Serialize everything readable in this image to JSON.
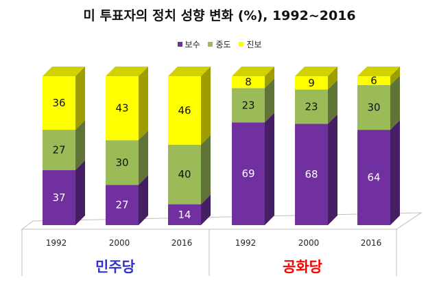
{
  "chart_data": {
    "type": "bar",
    "stacked": true,
    "three_d": true,
    "title": "미 투표자의 정치 성향 변화 (%), 1992~2016",
    "legend_position": "top",
    "categories": [
      "1992",
      "2000",
      "2016",
      "1992",
      "2000",
      "2016"
    ],
    "groups": [
      {
        "name": "민주당",
        "color": "#3333cc",
        "categories": [
          "1992",
          "2000",
          "2016"
        ]
      },
      {
        "name": "공화당",
        "color": "#ff0000",
        "categories": [
          "1992",
          "2000",
          "2016"
        ]
      }
    ],
    "series": [
      {
        "name": "보수",
        "values": [
          37,
          27,
          14,
          69,
          68,
          64
        ],
        "color": "#7030a0",
        "label_color": "#ffffff"
      },
      {
        "name": "중도",
        "values": [
          27,
          30,
          40,
          23,
          23,
          30
        ],
        "color": "#9bbb59",
        "label_color": "#111111"
      },
      {
        "name": "진보",
        "values": [
          36,
          43,
          46,
          8,
          9,
          6
        ],
        "color": "#ffff00",
        "label_color": "#111111"
      }
    ]
  }
}
